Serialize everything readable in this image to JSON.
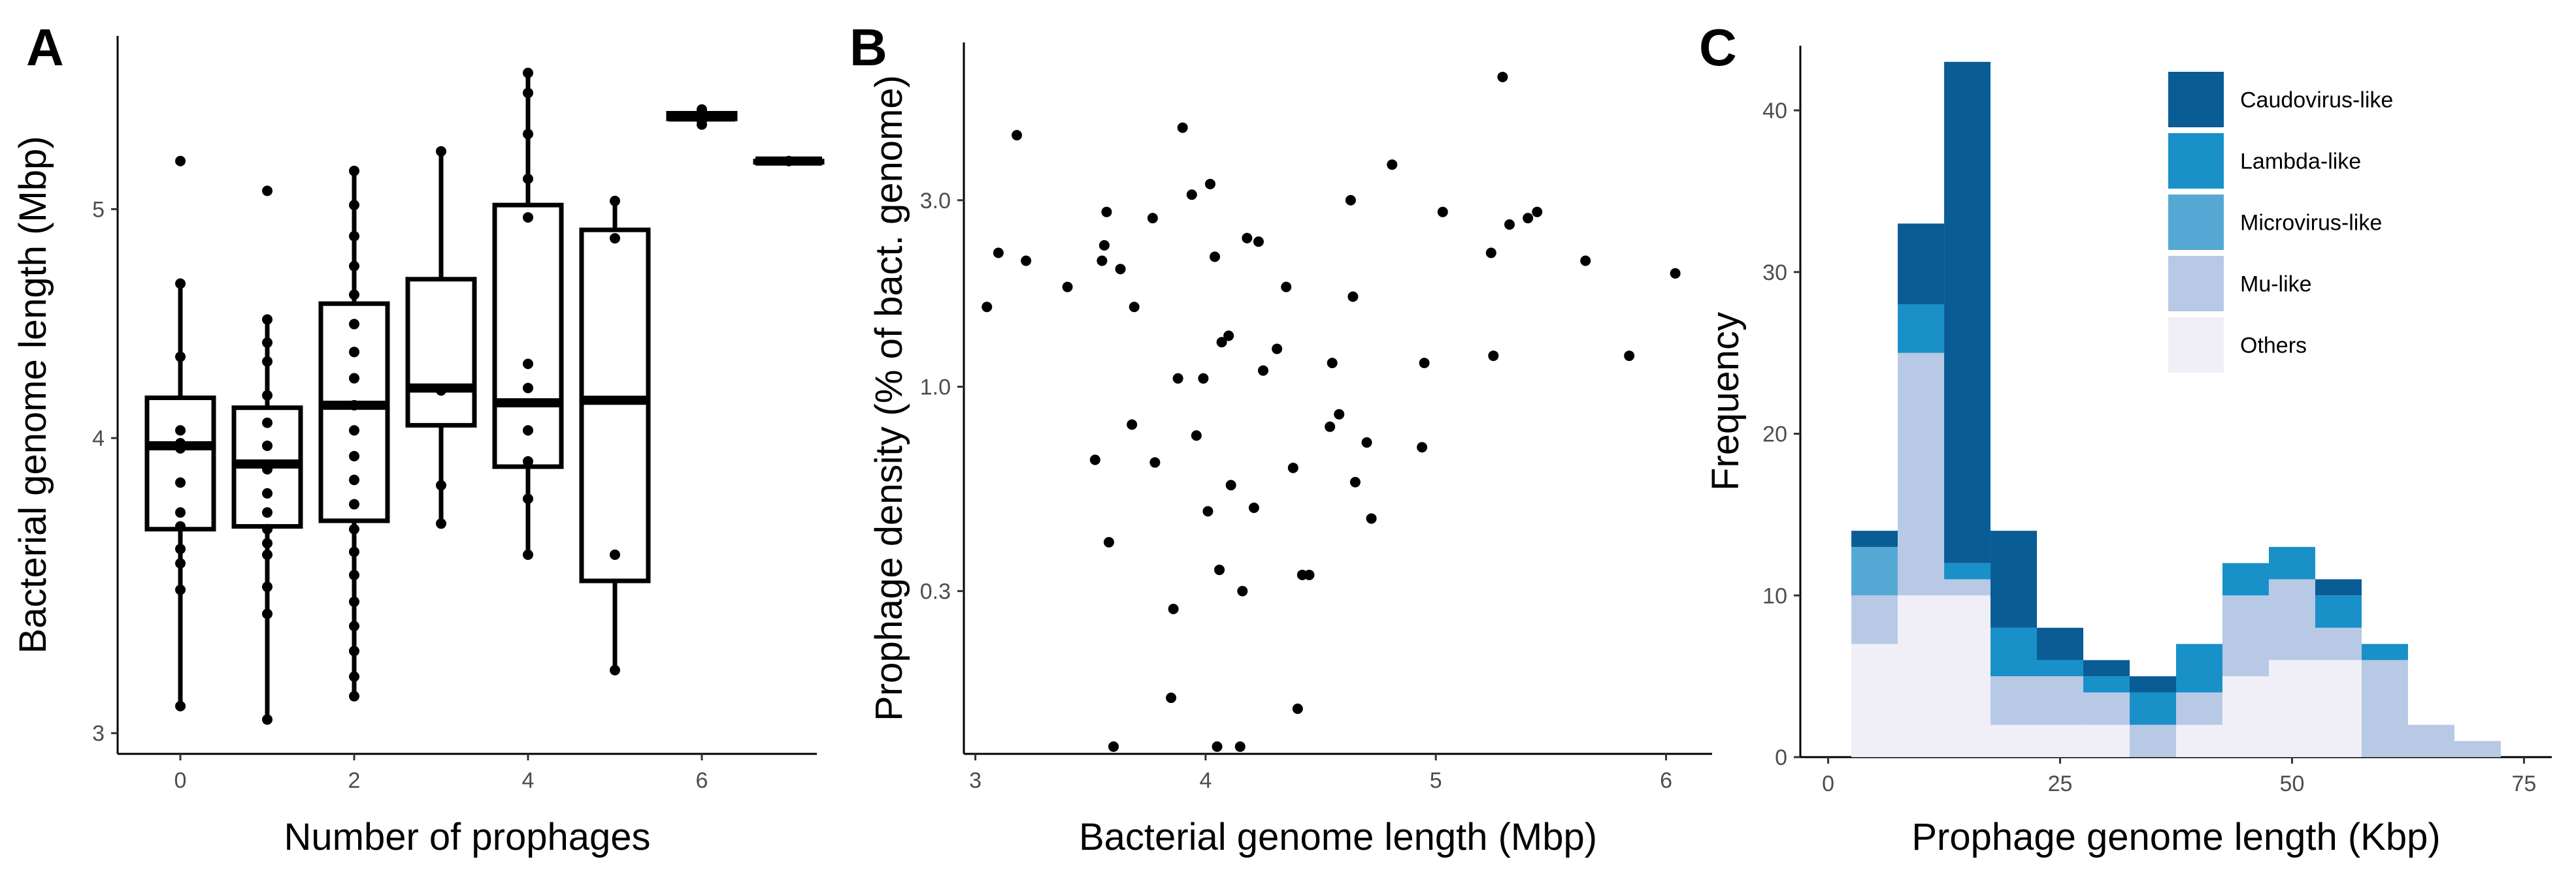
{
  "chart_data": [
    {
      "panel": "A",
      "type": "box",
      "xlabel": "Number of prophages",
      "ylabel": "Bacterial genome length (Mbp)",
      "x_ticks": [
        "0",
        "2",
        "4",
        "6"
      ],
      "y_ticks": [
        "3",
        "4",
        "5"
      ],
      "y_scale": "log",
      "categories": [
        0,
        1,
        2,
        3,
        4,
        5,
        6,
        7
      ],
      "boxes": [
        {
          "x": 0,
          "min": 3.08,
          "q1": 3.66,
          "median": 3.97,
          "q3": 4.16,
          "max": 4.65,
          "points": [
            3.08,
            3.45,
            3.54,
            3.59,
            3.67,
            3.72,
            3.83,
            3.96,
            3.98,
            4.03,
            4.33,
            4.65,
            5.24
          ]
        },
        {
          "x": 1,
          "min": 3.04,
          "q1": 3.67,
          "median": 3.9,
          "q3": 4.12,
          "max": 4.49,
          "points": [
            3.04,
            3.37,
            3.46,
            3.57,
            3.61,
            3.66,
            3.72,
            3.79,
            3.88,
            3.97,
            4.06,
            4.17,
            4.31,
            4.39,
            4.49,
            5.09
          ]
        },
        {
          "x": 2,
          "min": 3.11,
          "q1": 3.69,
          "median": 4.13,
          "q3": 4.56,
          "max": 5.19,
          "points": [
            3.11,
            3.17,
            3.25,
            3.33,
            3.41,
            3.5,
            3.58,
            3.66,
            3.75,
            3.84,
            3.93,
            4.03,
            4.13,
            4.24,
            4.35,
            4.47,
            4.6,
            4.73,
            4.87,
            5.02,
            5.19
          ]
        },
        {
          "x": 3,
          "min": 3.68,
          "q1": 4.05,
          "median": 4.2,
          "q3": 4.67,
          "max": 5.29,
          "points": [
            3.68,
            3.82,
            4.19,
            5.29
          ]
        },
        {
          "x": 4,
          "min": 3.57,
          "q1": 3.89,
          "median": 4.14,
          "q3": 5.02,
          "max": 5.71,
          "points": [
            3.57,
            3.77,
            3.91,
            4.03,
            4.2,
            4.3,
            4.96,
            5.15,
            5.38,
            5.6,
            5.71
          ]
        },
        {
          "x": 5,
          "min": 3.19,
          "q1": 3.48,
          "median": 4.15,
          "q3": 4.9,
          "max": 5.04,
          "points": [
            3.19,
            3.57,
            4.86,
            5.04
          ]
        },
        {
          "x": 6,
          "min": 5.44,
          "q1": 5.46,
          "median": 5.47,
          "q3": 5.49,
          "max": 5.51,
          "points": [
            5.43,
            5.45,
            5.48,
            5.51
          ]
        },
        {
          "x": 7,
          "min": 5.24,
          "q1": 5.24,
          "median": 5.24,
          "q3": 5.24,
          "max": 5.24,
          "points": [
            5.24
          ]
        }
      ]
    },
    {
      "panel": "B",
      "type": "scatter",
      "xlabel": "Bacterial genome length (Mbp)",
      "ylabel": "Prophage density (% of bact. genome)",
      "x_ticks": [
        "3",
        "4",
        "5",
        "6"
      ],
      "y_ticks": [
        "0.3",
        "1.0",
        "3.0"
      ],
      "y_scale": "log",
      "xlim": [
        2.95,
        6.2
      ],
      "x": [
        3.05,
        3.1,
        3.18,
        3.22,
        3.4,
        3.52,
        3.55,
        3.56,
        3.57,
        3.58,
        3.63,
        3.68,
        3.69,
        3.77,
        3.78,
        3.85,
        3.86,
        3.88,
        3.9,
        3.94,
        3.96,
        3.99,
        4.01,
        4.02,
        4.04,
        4.06,
        4.07,
        4.1,
        4.11,
        4.16,
        4.18,
        4.21,
        4.23,
        4.25,
        4.31,
        4.35,
        4.38,
        4.4,
        4.42,
        4.45,
        4.54,
        4.55,
        4.58,
        4.63,
        4.64,
        4.65,
        4.7,
        4.72,
        4.81,
        4.94,
        4.95,
        5.03,
        5.24,
        5.25,
        5.29,
        5.32,
        5.4,
        5.44,
        5.65,
        5.84,
        6.04,
        3.6,
        4.05,
        4.15
      ],
      "y": [
        1.6,
        2.2,
        4.4,
        2.1,
        1.8,
        0.65,
        2.1,
        2.3,
        2.8,
        0.4,
        2.0,
        0.8,
        1.6,
        2.7,
        0.64,
        0.16,
        0.27,
        1.05,
        4.6,
        3.1,
        0.75,
        1.05,
        0.48,
        3.3,
        2.15,
        0.34,
        1.3,
        1.35,
        0.56,
        0.3,
        2.4,
        0.49,
        2.35,
        1.1,
        1.25,
        1.8,
        0.62,
        0.15,
        0.33,
        0.33,
        0.79,
        1.15,
        0.85,
        3.0,
        1.7,
        0.57,
        0.72,
        0.46,
        3.7,
        0.7,
        1.15,
        2.8,
        2.2,
        1.2,
        6.2,
        2.6,
        2.7,
        2.8,
        2.1,
        1.2,
        1.95,
        0.12,
        0.12,
        0.12
      ]
    },
    {
      "panel": "C",
      "type": "bar",
      "stacked": true,
      "xlabel": "Prophage genome length (Kbp)",
      "ylabel": "Frequency",
      "x_ticks": [
        "0",
        "25",
        "50",
        "75"
      ],
      "y_ticks": [
        "0",
        "10",
        "20",
        "30",
        "40"
      ],
      "xlim": [
        -3,
        78
      ],
      "ylim": [
        0,
        44
      ],
      "bin_width": 5,
      "categories": [
        5,
        10,
        15,
        20,
        25,
        30,
        35,
        40,
        45,
        50,
        55,
        60,
        65,
        70
      ],
      "series": [
        {
          "name": "Others",
          "values": [
            7,
            10,
            10,
            2,
            2,
            2,
            0,
            2,
            5,
            6,
            6,
            0,
            0,
            0
          ],
          "color": "#f0eff8"
        },
        {
          "name": "Mu-like",
          "values": [
            3,
            15,
            1,
            3,
            3,
            2,
            2,
            2,
            5,
            5,
            2,
            6,
            2,
            1
          ],
          "color": "#b8c9e6"
        },
        {
          "name": "Microvirus-like",
          "values": [
            3,
            0,
            0,
            0,
            0,
            0,
            0,
            0,
            0,
            0,
            0,
            0,
            0,
            0
          ],
          "color": "#56a8d4"
        },
        {
          "name": "Lambda-like",
          "values": [
            0,
            3,
            1,
            3,
            1,
            1,
            2,
            3,
            2,
            2,
            2,
            1,
            0,
            0
          ],
          "color": "#1990c8"
        },
        {
          "name": "Caudovirus-like",
          "values": [
            1,
            5,
            31,
            6,
            2,
            1,
            1,
            0,
            0,
            0,
            1,
            0,
            0,
            0
          ],
          "color": "#0a5c94"
        }
      ],
      "legend": [
        "Caudovirus-like",
        "Lambda-like",
        "Microvirus-like",
        "Mu-like",
        "Others"
      ],
      "legend_position": "top-right"
    }
  ]
}
